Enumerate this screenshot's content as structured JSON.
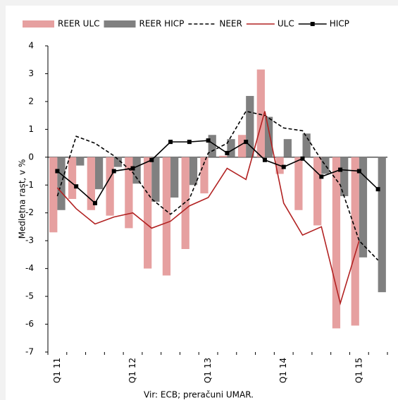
{
  "chart_data": {
    "type": "bar",
    "y_label": "Medletna  rast, v %",
    "source": "Vir: ECB; preračuni UMAR.",
    "categories": [
      "Q1 11",
      null,
      null,
      null,
      "Q1 12",
      null,
      null,
      null,
      "Q1 13",
      null,
      null,
      null,
      "Q1 14",
      null,
      null,
      null,
      "Q1 15",
      null
    ],
    "series": [
      {
        "name": "REER ULC",
        "type": "bar",
        "color": "#e6a0a0",
        "values": [
          -2.7,
          -1.5,
          -1.9,
          -2.1,
          -2.55,
          -4.0,
          -4.25,
          -3.3,
          -1.3,
          0.05,
          0.8,
          3.15,
          -0.6,
          -1.9,
          -2.45,
          -6.15,
          -6.05,
          null
        ]
      },
      {
        "name": "REER HICP",
        "type": "bar",
        "color": "#808080",
        "values": [
          -1.9,
          -0.3,
          -1.15,
          -0.35,
          -0.95,
          -1.6,
          -1.45,
          -1.0,
          0.8,
          0.65,
          2.2,
          1.45,
          0.65,
          0.85,
          -0.6,
          -1.4,
          -3.6,
          -4.85
        ]
      },
      {
        "name": "NEER",
        "type": "line",
        "color": "#000000",
        "dashed": true,
        "values": [
          -1.4,
          0.75,
          0.5,
          0.05,
          -0.55,
          -1.5,
          -2.05,
          -1.5,
          0.15,
          0.5,
          1.65,
          1.5,
          1.05,
          0.95,
          -0.1,
          -1.0,
          -3.0,
          -3.7
        ]
      },
      {
        "name": "ULC",
        "type": "line",
        "color": "#b22222",
        "values": [
          -1.1,
          -1.85,
          -2.4,
          -2.15,
          -2.0,
          -2.55,
          -2.3,
          -1.75,
          -1.45,
          -0.4,
          -0.8,
          1.65,
          -1.65,
          -2.8,
          -2.5,
          -5.25,
          -3.0,
          null
        ]
      },
      {
        "name": "HICP",
        "type": "line",
        "color": "#000000",
        "marker": "square",
        "values": [
          -0.5,
          -1.05,
          -1.65,
          -0.5,
          -0.4,
          -0.1,
          0.55,
          0.55,
          0.6,
          0.15,
          0.55,
          -0.1,
          -0.35,
          -0.05,
          -0.7,
          -0.45,
          -0.5,
          -1.15
        ]
      }
    ],
    "ylim": [
      -7,
      4
    ],
    "yticks": [
      -7,
      -6,
      -5,
      -4,
      -3,
      -2,
      -1,
      0,
      1,
      2,
      3,
      4
    ]
  }
}
